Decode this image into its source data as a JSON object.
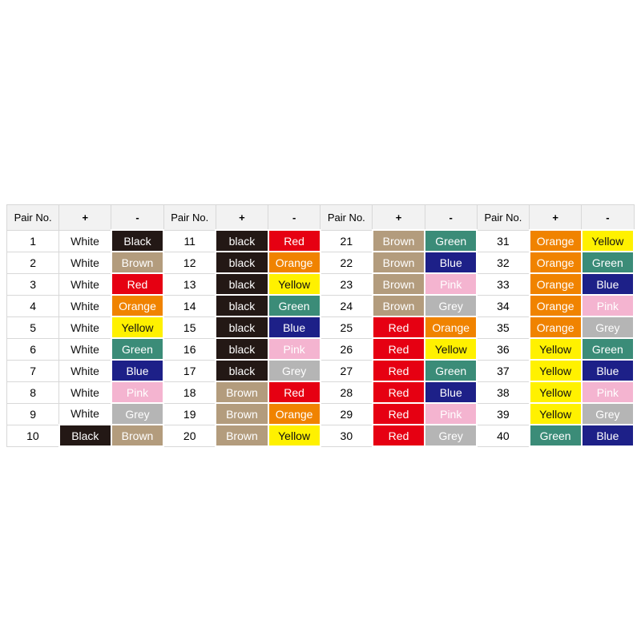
{
  "table": {
    "header": [
      "Pair No.",
      "+",
      "-",
      "Pair No.",
      "+",
      "-",
      "Pair No.",
      "+",
      "-",
      "Pair No.",
      "+",
      "-"
    ],
    "rows": [
      [
        1,
        "White",
        "Black",
        11,
        "black",
        "Red",
        21,
        "Brown",
        "Green",
        31,
        "Orange",
        "Yellow"
      ],
      [
        2,
        "White",
        "Brown",
        12,
        "black",
        "Orange",
        22,
        "Brown",
        "Blue",
        32,
        "Orange",
        "Green"
      ],
      [
        3,
        "White",
        "Red",
        13,
        "black",
        "Yellow",
        23,
        "Brown",
        "Pink",
        33,
        "Orange",
        "Blue"
      ],
      [
        4,
        "White",
        "Orange",
        14,
        "black",
        "Green",
        24,
        "Brown",
        "Grey",
        34,
        "Orange",
        "Pink"
      ],
      [
        5,
        "White",
        "Yellow",
        15,
        "black",
        "Blue",
        25,
        "Red",
        "Orange",
        35,
        "Orange",
        "Grey"
      ],
      [
        6,
        "White",
        "Green",
        16,
        "black",
        "Pink",
        26,
        "Red",
        "Yellow",
        36,
        "Yellow",
        "Green"
      ],
      [
        7,
        "White",
        "Blue",
        17,
        "black",
        "Grey",
        27,
        "Red",
        "Green",
        37,
        "Yellow",
        "Blue"
      ],
      [
        8,
        "White",
        "Pink",
        18,
        "Brown",
        "Red",
        28,
        "Red",
        "Blue",
        38,
        "Yellow",
        "Pink"
      ],
      [
        9,
        "White",
        "Grey",
        19,
        "Brown",
        "Orange",
        29,
        "Red",
        "Pink",
        39,
        "Yellow",
        "Grey"
      ],
      [
        10,
        "Black",
        "Brown",
        20,
        "Brown",
        "Yellow",
        30,
        "Red",
        "Grey",
        40,
        "Green",
        "Blue"
      ]
    ]
  }
}
